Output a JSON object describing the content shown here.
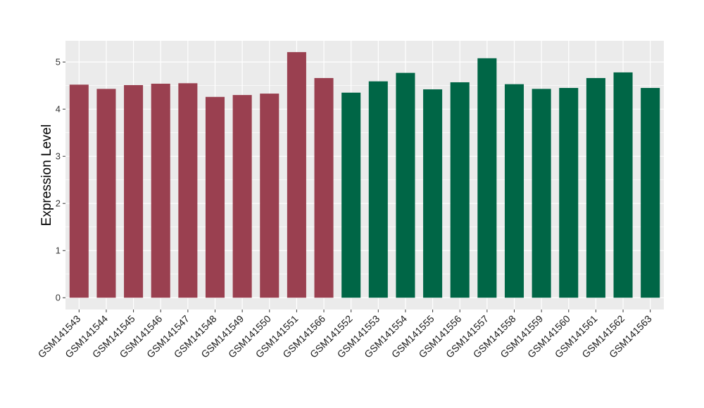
{
  "chart_data": {
    "type": "bar",
    "title": "",
    "xlabel": "",
    "ylabel": "Expression Level",
    "ylim": [
      -0.25,
      5.45
    ],
    "yticks": [
      0,
      1,
      2,
      3,
      4,
      5
    ],
    "grid": true,
    "colors": {
      "group_1": "#9a4050",
      "group_2": "#006646",
      "panel": "#ebebeb",
      "gridline": "#ffffff"
    },
    "categories": [
      "GSM141543",
      "GSM141544",
      "GSM141545",
      "GSM141546",
      "GSM141547",
      "GSM141548",
      "GSM141549",
      "GSM141550",
      "GSM141551",
      "GSM141566",
      "GSM141552",
      "GSM141553",
      "GSM141554",
      "GSM141555",
      "GSM141556",
      "GSM141557",
      "GSM141558",
      "GSM141559",
      "GSM141560",
      "GSM141561",
      "GSM141562",
      "GSM141563"
    ],
    "values": [
      4.52,
      4.43,
      4.51,
      4.54,
      4.55,
      4.26,
      4.3,
      4.33,
      5.21,
      4.66,
      4.35,
      4.59,
      4.77,
      4.42,
      4.57,
      5.08,
      4.53,
      4.43,
      4.45,
      4.66,
      4.78,
      4.45
    ],
    "groups": [
      1,
      1,
      1,
      1,
      1,
      1,
      1,
      1,
      1,
      1,
      2,
      2,
      2,
      2,
      2,
      2,
      2,
      2,
      2,
      2,
      2,
      2
    ]
  }
}
